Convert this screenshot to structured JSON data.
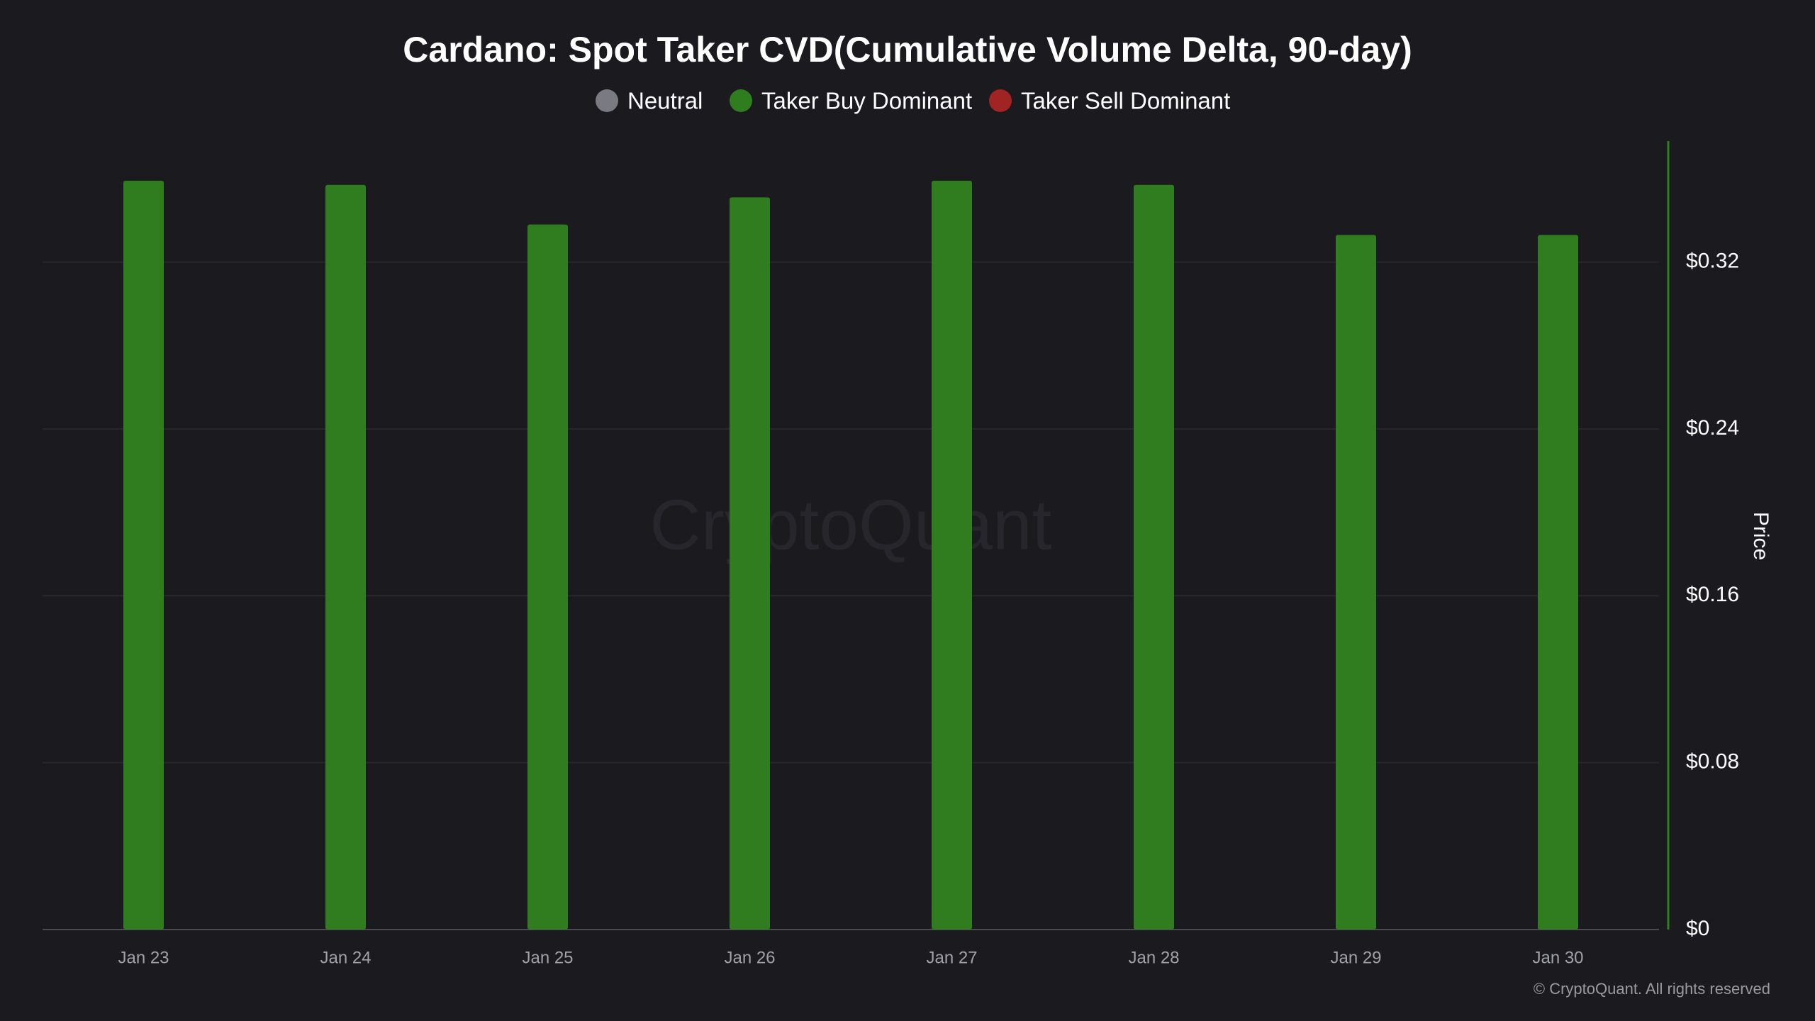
{
  "chart_data": {
    "type": "bar",
    "title": "Cardano: Spot Taker CVD(Cumulative Volume Delta, 90-day)",
    "categories": [
      "Jan 23",
      "Jan 24",
      "Jan 25",
      "Jan 26",
      "Jan 27",
      "Jan 28",
      "Jan 29",
      "Jan 30"
    ],
    "series": [
      {
        "name": "Neutral",
        "color": "#7a7a82",
        "values": [
          null,
          null,
          null,
          null,
          null,
          null,
          null,
          null
        ]
      },
      {
        "name": "Taker Buy Dominant",
        "color": "#2f7d1f",
        "values": [
          0.359,
          0.357,
          0.338,
          0.351,
          0.359,
          0.357,
          0.333,
          0.333
        ]
      },
      {
        "name": "Taker Sell Dominant",
        "color": "#a02424",
        "values": [
          null,
          null,
          null,
          null,
          null,
          null,
          null,
          null
        ]
      }
    ],
    "y_axis_label": "Price",
    "ylim": [
      0,
      0.378
    ],
    "yticks": [
      {
        "value": 0,
        "label": "$0"
      },
      {
        "value": 0.08,
        "label": "$0.08"
      },
      {
        "value": 0.16,
        "label": "$0.16"
      },
      {
        "value": 0.24,
        "label": "$0.24"
      },
      {
        "value": 0.32,
        "label": "$0.32"
      }
    ],
    "grid": true,
    "watermark": "CryptoQuant",
    "copyright": "© CryptoQuant. All rights reserved"
  }
}
